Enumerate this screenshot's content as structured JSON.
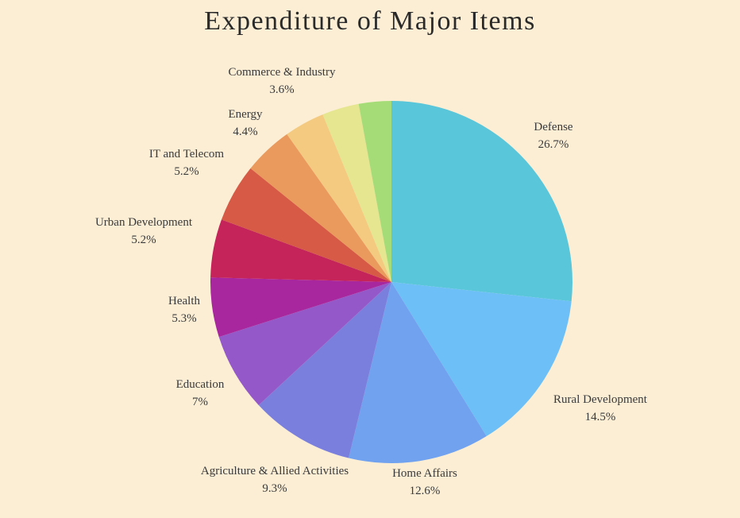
{
  "chart_data": {
    "type": "pie",
    "title": "Expenditure of Major Items",
    "slices": [
      {
        "label": "Defense",
        "value": 26.7,
        "display": "26.7%",
        "color": "#5ac6d9"
      },
      {
        "label": "Rural Development",
        "value": 14.5,
        "display": "14.5%",
        "color": "#6cc0f7"
      },
      {
        "label": "Home Affairs",
        "value": 12.6,
        "display": "12.6%",
        "color": "#70a2ef"
      },
      {
        "label": "Agriculture & Allied Activities",
        "value": 9.3,
        "display": "9.3%",
        "color": "#7a7fde"
      },
      {
        "label": "Education",
        "value": 7,
        "display": "7%",
        "color": "#9558c9"
      },
      {
        "label": "Health",
        "value": 5.3,
        "display": "5.3%",
        "color": "#a8269e"
      },
      {
        "label": "Urban Development",
        "value": 5.2,
        "display": "5.2%",
        "color": "#c4245a"
      },
      {
        "label": "IT and Telecom",
        "value": 5.2,
        "display": "5.2%",
        "color": "#d65a45"
      },
      {
        "label": "Energy",
        "value": 4.4,
        "display": "4.4%",
        "color": "#ea9a5c"
      },
      {
        "label": "Commerce & Industry",
        "value": 3.6,
        "display": "3.6%",
        "color": "#f3ca80"
      },
      {
        "label": "",
        "value": 3.3,
        "display": "",
        "color": "#e6e590"
      },
      {
        "label": "",
        "value": 2.9,
        "display": "",
        "color": "#a6dc78"
      }
    ]
  }
}
